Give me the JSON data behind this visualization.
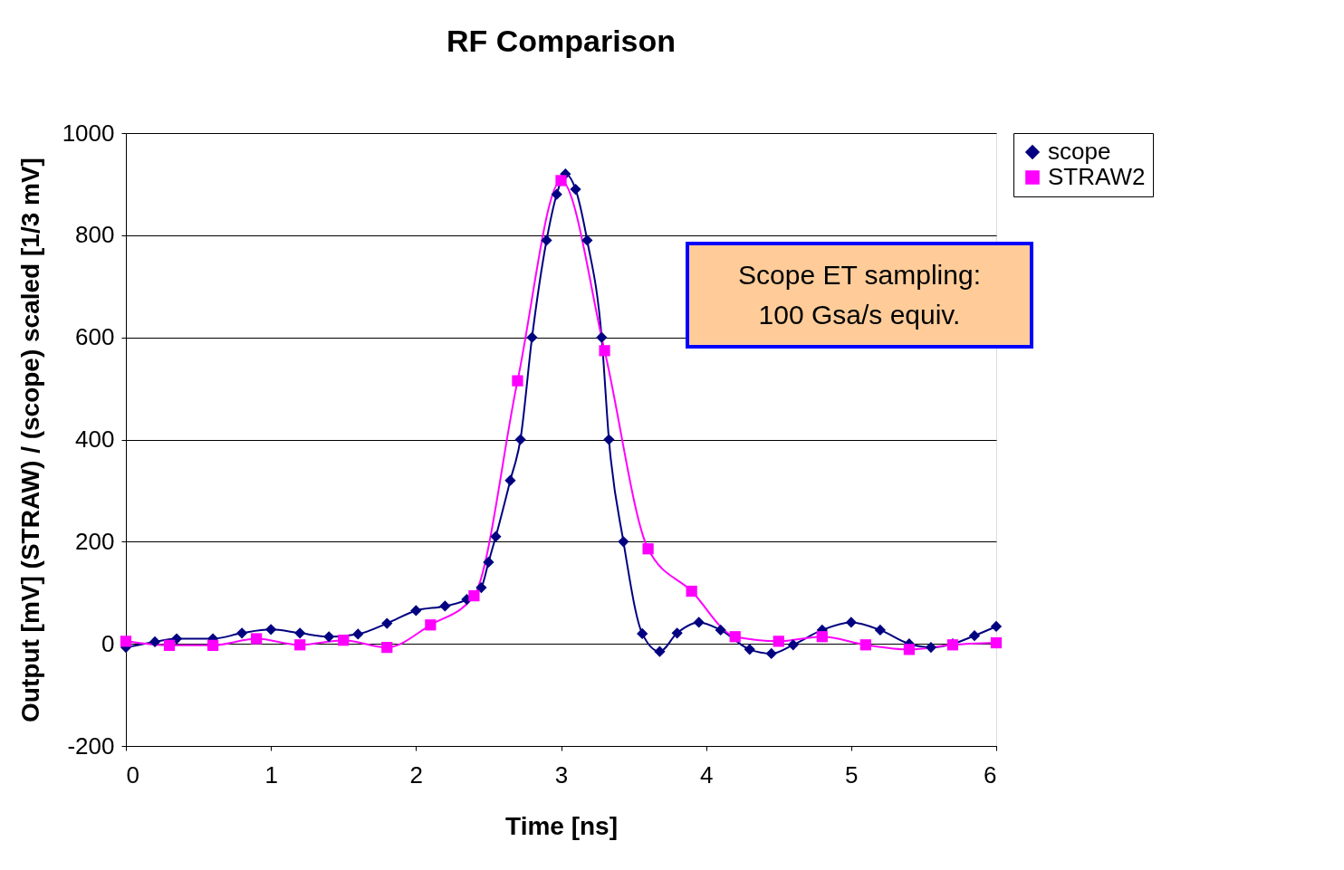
{
  "chart_data": {
    "type": "line",
    "title": "RF Comparison",
    "xlabel": "Time [ns]",
    "ylabel": "Output [mV] (STRAW) / (scope) scaled [1/3 mV]",
    "xlim": [
      0,
      6
    ],
    "xticks": [
      0,
      1,
      2,
      3,
      4,
      5,
      6
    ],
    "ylim": [
      -200,
      1000
    ],
    "yticks": [
      -200,
      0,
      200,
      400,
      600,
      800,
      1000
    ],
    "grid": "y",
    "legend": "right",
    "annotations": [
      "Scope ET sampling:\n100 Gsa/s equiv."
    ],
    "series": [
      {
        "name": "scope",
        "color": "#000080",
        "marker": "diamond",
        "x": [
          0,
          0.2,
          0.35,
          0.6,
          0.8,
          1.0,
          1.2,
          1.4,
          1.6,
          1.8,
          2.0,
          2.2,
          2.35,
          2.45,
          2.5,
          2.55,
          2.65,
          2.72,
          2.8,
          2.9,
          2.97,
          3.03,
          3.1,
          3.18,
          3.28,
          3.33,
          3.43,
          3.56,
          3.68,
          3.8,
          3.95,
          4.1,
          4.3,
          4.45,
          4.6,
          4.8,
          5.0,
          5.2,
          5.4,
          5.55,
          5.7,
          5.85,
          6.0
        ],
        "values": [
          -7,
          4,
          10,
          10,
          21,
          28,
          21,
          14,
          19,
          40,
          65,
          74,
          87,
          110,
          160,
          210,
          320,
          400,
          600,
          790,
          880,
          920,
          890,
          790,
          600,
          400,
          200,
          20,
          -15,
          21,
          42,
          27,
          -11,
          -19,
          -2,
          27,
          42,
          27,
          0,
          -7,
          0,
          16,
          34
        ]
      },
      {
        "name": "STRAW2",
        "color": "#ff00ff",
        "marker": "square",
        "x": [
          0,
          0.3,
          0.6,
          0.9,
          1.2,
          1.5,
          1.8,
          2.1,
          2.4,
          2.7,
          3.0,
          3.3,
          3.6,
          3.9,
          4.2,
          4.5,
          4.8,
          5.1,
          5.4,
          5.7,
          6.0
        ],
        "values": [
          5,
          -3,
          -3,
          10,
          -2,
          7,
          -7,
          37,
          94,
          515,
          907,
          574,
          186,
          103,
          14,
          5,
          14,
          -2,
          -11,
          -2,
          2
        ]
      }
    ]
  }
}
